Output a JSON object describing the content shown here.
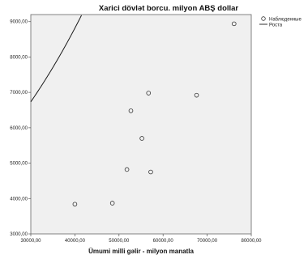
{
  "chart_data": {
    "type": "scatter",
    "title": "Xarici dövlət borcu. milyon ABŞ dollar",
    "xlabel": "Ümumi milli gəlir - milyon manatla",
    "ylabel": "",
    "xlim": [
      30000,
      80000
    ],
    "ylim": [
      3000,
      9200
    ],
    "x_ticks": [
      "30000,00",
      "40000,00",
      "50000,00",
      "60000,00",
      "70000,00",
      "80000,00"
    ],
    "y_ticks": [
      "3000,00",
      "4000,00",
      "5000,00",
      "6000,00",
      "7000,00",
      "8000,00",
      "9000,00"
    ],
    "x_tick_values": [
      30000,
      40000,
      50000,
      60000,
      70000,
      80000
    ],
    "y_tick_values": [
      3000,
      4000,
      5000,
      6000,
      7000,
      8000,
      9000
    ],
    "grid": false,
    "legend_position": "top-right",
    "legend": [
      {
        "label": "Наблюденные",
        "symbol": "circle"
      },
      {
        "label": "Роста",
        "symbol": "line"
      }
    ],
    "series": [
      {
        "name": "Наблюденные",
        "type": "scatter",
        "x": [
          40000,
          48500,
          51800,
          52700,
          55200,
          56700,
          57200,
          67600,
          76100
        ],
        "y": [
          3840,
          3870,
          4820,
          6480,
          5700,
          6980,
          4750,
          6920,
          8940
        ]
      },
      {
        "name": "Роста",
        "type": "line",
        "curve": "growth",
        "a": 8.006,
        "b": 2.696e-05
      }
    ],
    "colors": {
      "plot_bg": "#f0f0f0",
      "marker": "#333333",
      "line": "#1a1a1a",
      "axis": "#555555"
    }
  }
}
